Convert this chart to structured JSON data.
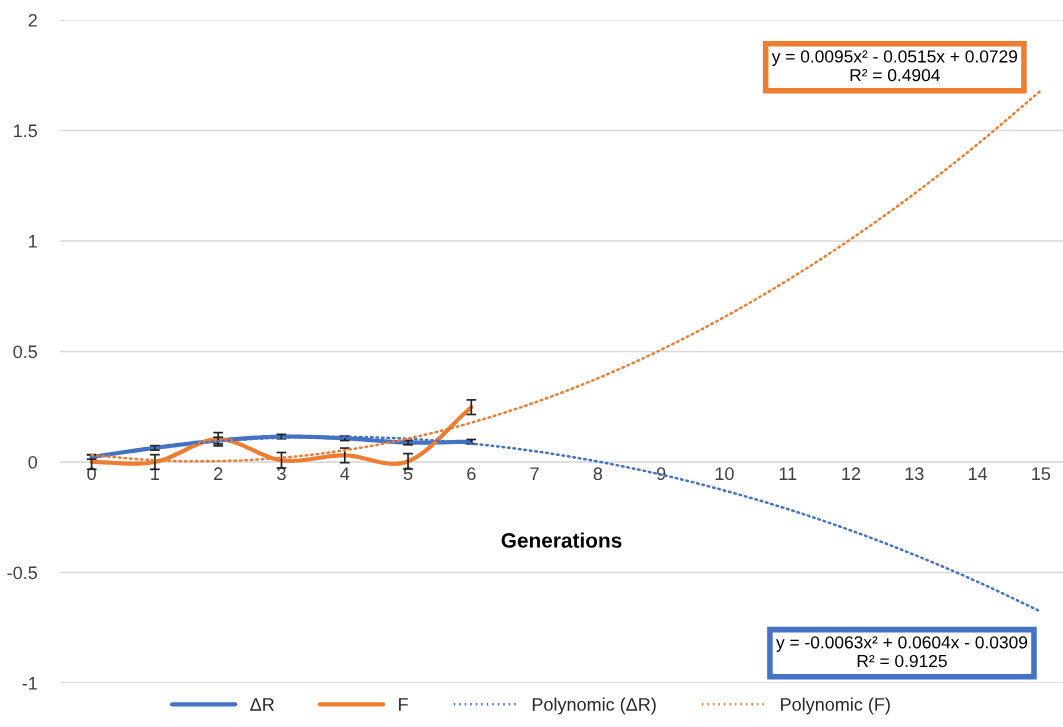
{
  "chart_data": {
    "type": "line",
    "xlabel": "Generations",
    "x": [
      0,
      1,
      2,
      3,
      4,
      5,
      6
    ],
    "xlim": [
      -0.5,
      15.35
    ],
    "xticks": [
      0,
      1,
      2,
      3,
      4,
      5,
      6,
      7,
      8,
      9,
      10,
      11,
      12,
      13,
      14,
      15
    ],
    "ylim": [
      -1,
      2
    ],
    "yticks": [
      -1,
      -0.5,
      0,
      0.5,
      1,
      1.5,
      2
    ],
    "grid": "y",
    "legend": "bottom",
    "marker": "none",
    "series": [
      {
        "name": "ΔR",
        "color": "#4472c4",
        "line_style": "solid",
        "values": [
          0.023,
          0.064,
          0.097,
          0.115,
          0.107,
          0.088,
          0.092
        ],
        "errors": [
          0.01,
          0.01,
          0.015,
          0.01,
          0.01,
          0.01,
          0.01
        ]
      },
      {
        "name": "F",
        "color": "#ed7d31",
        "line_style": "solid",
        "values": [
          0.0,
          0.0,
          0.103,
          0.008,
          0.03,
          0.003,
          0.248
        ],
        "errors": [
          0.033,
          0.033,
          0.03,
          0.035,
          0.033,
          0.035,
          0.033
        ]
      },
      {
        "name": "Polynomic (ΔR)",
        "color": "#4472c4",
        "line_style": "dotted",
        "x": [
          0,
          1,
          2,
          3,
          4,
          5,
          6,
          7,
          8,
          9,
          10,
          11,
          12,
          13,
          14,
          15
        ],
        "values": [
          0.023,
          0.065,
          0.094,
          0.11,
          0.114,
          0.105,
          0.083,
          0.049,
          0.002,
          -0.057,
          -0.129,
          -0.213,
          -0.31,
          -0.42,
          -0.542,
          -0.677
        ]
      },
      {
        "name": "Polynomic (F)",
        "color": "#ed7d31",
        "line_style": "dotted",
        "x": [
          0,
          1,
          2,
          3,
          4,
          5,
          6,
          7,
          8,
          9,
          10,
          11,
          12,
          13,
          14,
          15
        ],
        "values": [
          0.031,
          0.008,
          0.004,
          0.019,
          0.053,
          0.106,
          0.178,
          0.269,
          0.379,
          0.508,
          0.656,
          0.823,
          1.009,
          1.214,
          1.438,
          1.681
        ]
      }
    ],
    "annotations": [
      "y = 0.0095x² - 0.0515x + 0.0729\nR² = 0.4904",
      "y = -0.0063x² + 0.0604x - 0.0309\nR² = 0.9125"
    ]
  }
}
